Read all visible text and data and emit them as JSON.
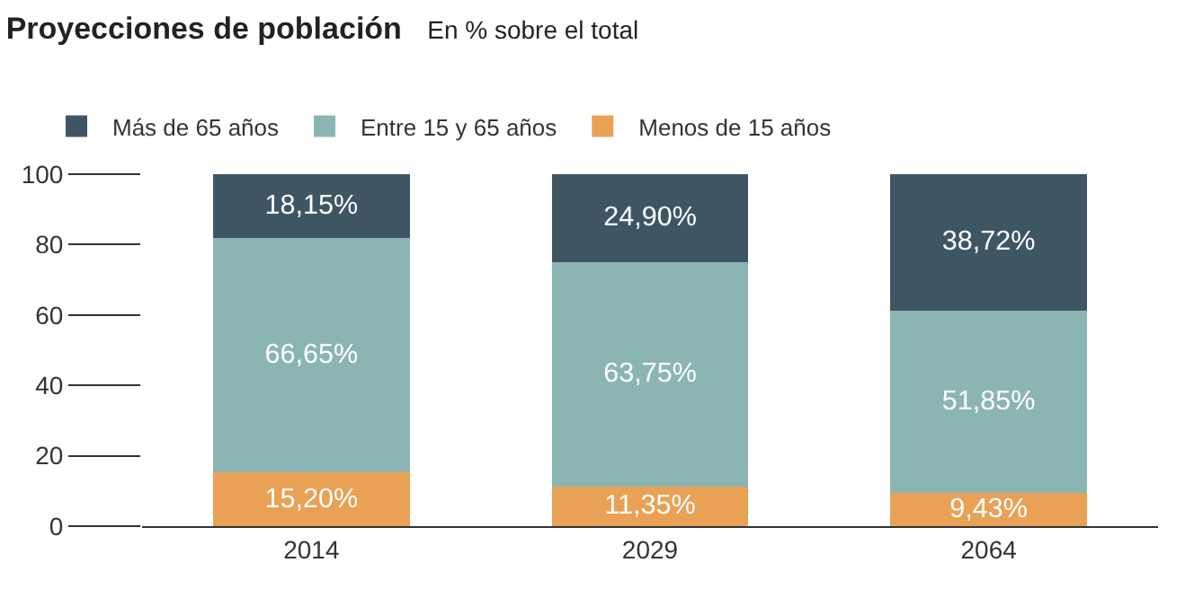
{
  "chart_data": {
    "type": "bar",
    "title": "Proyecciones de población",
    "subtitle": "En % sobre el total",
    "categories": [
      "2014",
      "2029",
      "2064"
    ],
    "stacked": true,
    "legend": "top left",
    "ylim": [
      0,
      100
    ],
    "yticks": [
      0,
      20,
      40,
      60,
      80,
      100
    ],
    "series": [
      {
        "name": "Menos de 15 años",
        "color": "#e8a155",
        "values": [
          15.2,
          11.35,
          9.43
        ],
        "value_labels": [
          "15,20%",
          "11,35%",
          "9,43%"
        ]
      },
      {
        "name": "Entre 15 y 65 años",
        "color": "#8bb5b3",
        "values": [
          66.65,
          63.75,
          51.85
        ],
        "value_labels": [
          "66,65%",
          "63,75%",
          "51,85%"
        ]
      },
      {
        "name": "Más de 65 años",
        "color": "#3e5664",
        "values": [
          18.15,
          24.9,
          38.72
        ],
        "value_labels": [
          "18,15%",
          "24,90%",
          "38,72%"
        ]
      }
    ]
  }
}
